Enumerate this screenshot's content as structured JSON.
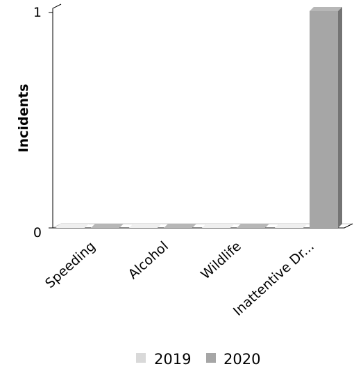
{
  "chart_data": {
    "type": "bar",
    "style": "3d-clustered",
    "categories": [
      "Speeding",
      "Alcohol",
      "Wildlife",
      "Inattentive Dr..."
    ],
    "series": [
      {
        "name": "2019",
        "values": [
          0,
          0,
          0,
          0
        ],
        "color": "#d9d9d9"
      },
      {
        "name": "2020",
        "values": [
          0,
          0,
          0,
          1
        ],
        "color": "#a6a6a6"
      }
    ],
    "ylabel": "Incidents",
    "xlabel": "",
    "ylim": [
      0,
      1
    ],
    "yticks": [
      "0",
      "1"
    ],
    "grid": false,
    "legend": "bottom"
  }
}
